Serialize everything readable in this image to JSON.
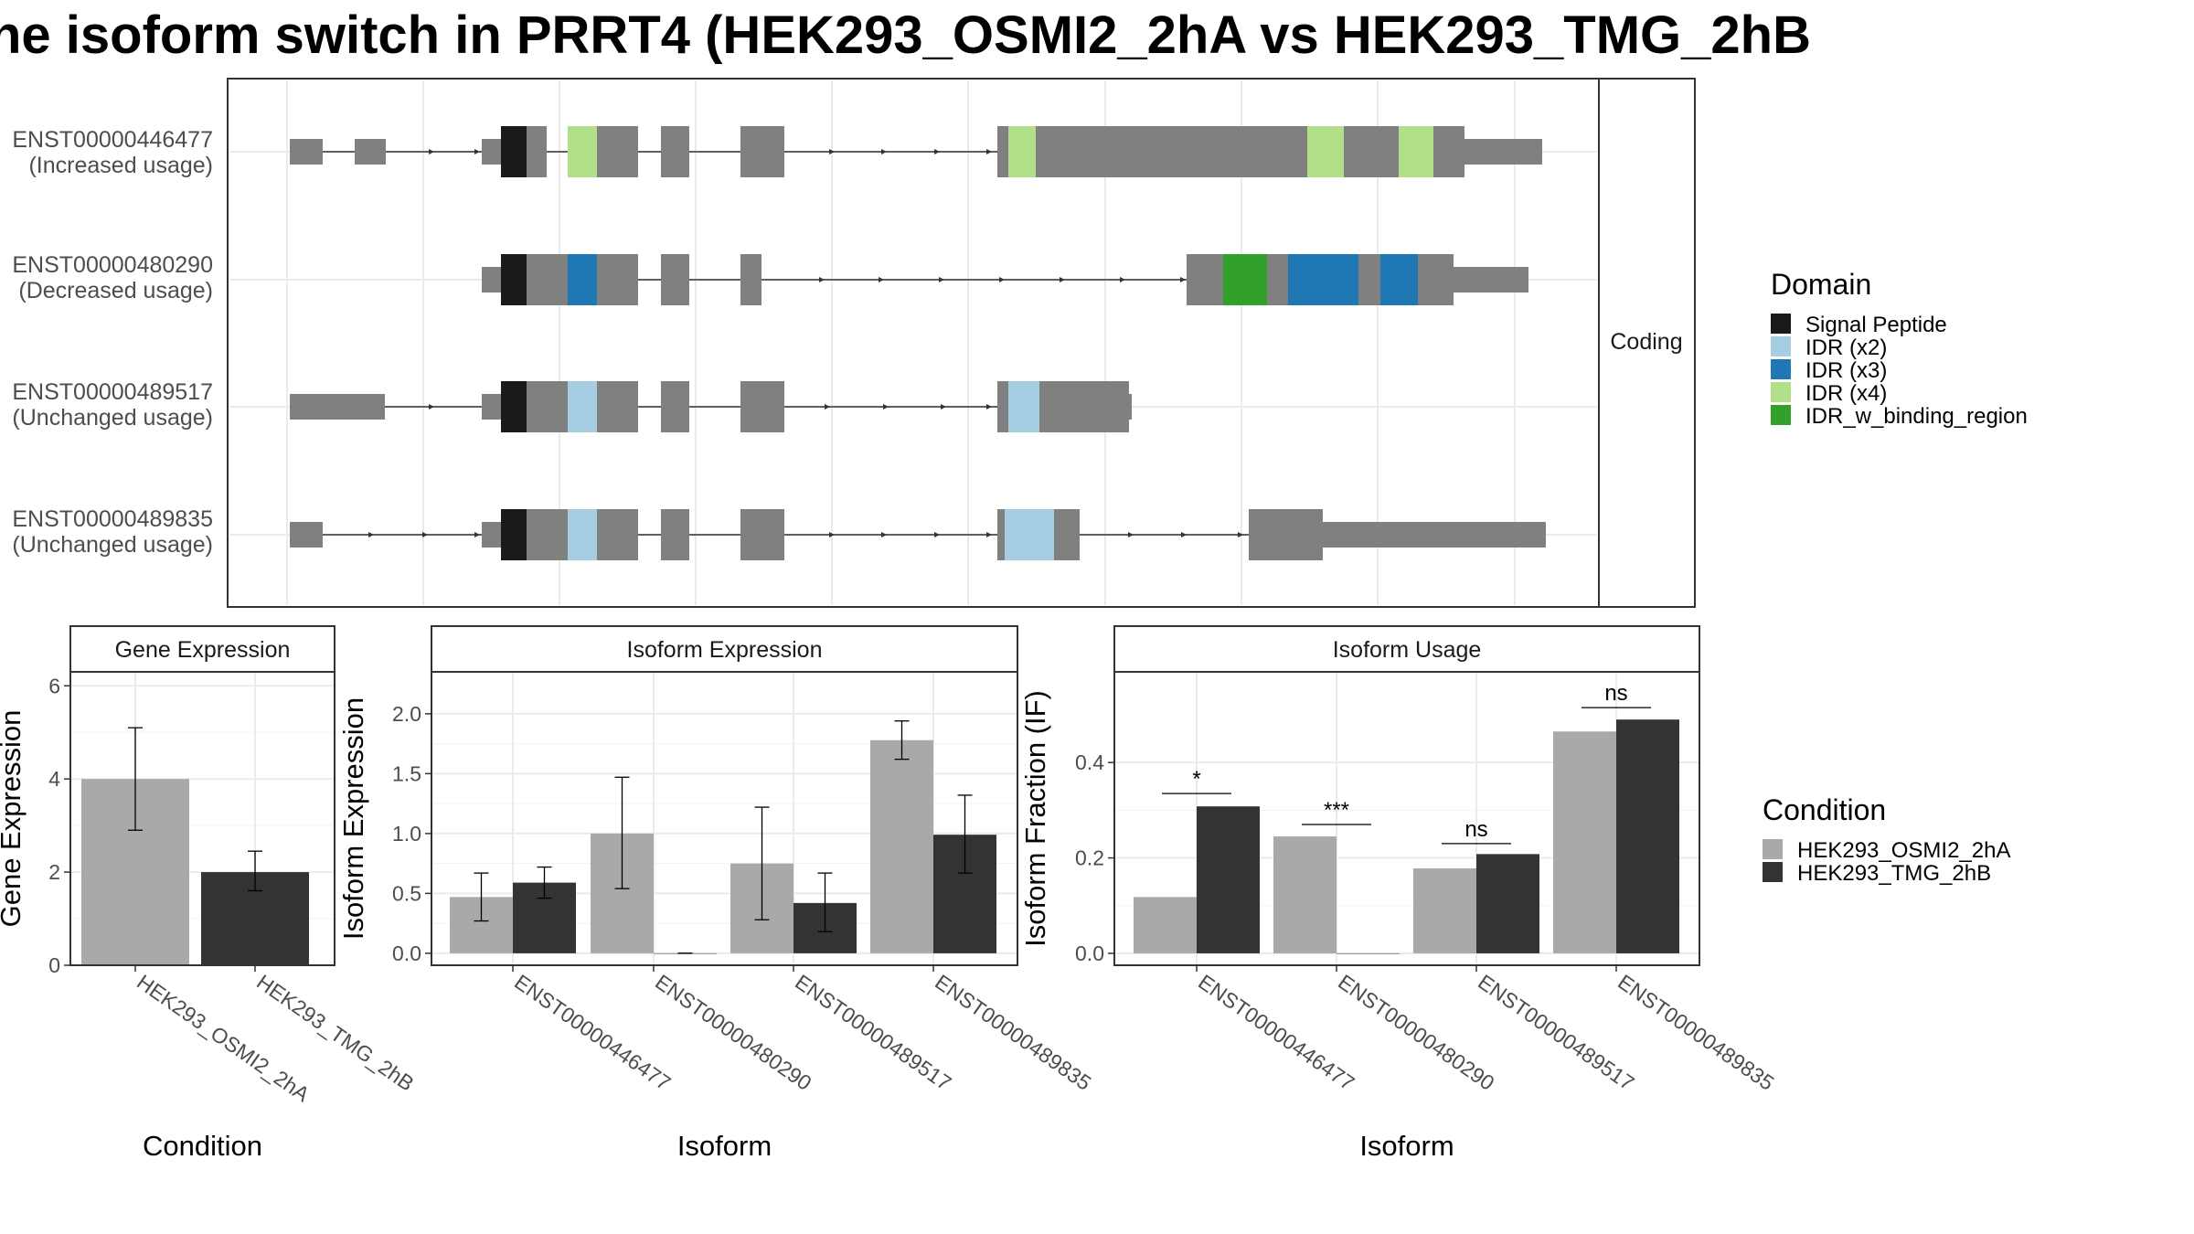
{
  "title": "he isoform switch in PRRT4 (HEK293_OSMI2_2hA vs HEK293_TMG_2hB",
  "colors": {
    "exon": "#808080",
    "intron": "#333333",
    "condition_1": "#a9a9a9",
    "condition_2": "#333333",
    "panel_border": "#333333",
    "grid": "#ebebeb"
  },
  "structure": {
    "facet_label": "Coding",
    "transcripts": [
      {
        "id": "ENST00000446477",
        "label": "ENST00000446477",
        "usage": "(Increased usage)"
      },
      {
        "id": "ENST00000480290",
        "label": "ENST00000480290",
        "usage": "(Decreased usage)"
      },
      {
        "id": "ENST00000489517",
        "label": "ENST00000489517",
        "usage": "(Unchanged usage)"
      },
      {
        "id": "ENST00000489835",
        "label": "ENST00000489835",
        "usage": "(Unchanged usage)"
      }
    ]
  },
  "domain_legend": {
    "title": "Domain",
    "items": [
      {
        "label": "Signal Peptide",
        "color": "#1a1a1a"
      },
      {
        "label": "IDR (x2)",
        "color": "#a6cee3"
      },
      {
        "label": "IDR (x3)",
        "color": "#1f78b4"
      },
      {
        "label": "IDR (x4)",
        "color": "#b2df8a"
      },
      {
        "label": "IDR_w_binding_region",
        "color": "#33a02c"
      }
    ]
  },
  "condition_legend": {
    "title": "Condition",
    "items": [
      {
        "label": "HEK293_OSMI2_2hA",
        "color": "#a9a9a9"
      },
      {
        "label": "HEK293_TMG_2hB",
        "color": "#333333"
      }
    ]
  },
  "chart_data": [
    {
      "type": "bar",
      "title": "Gene Expression",
      "xlabel": "Condition",
      "ylabel": "Gene Expression",
      "categories": [
        "HEK293_OSMI2_2hA",
        "HEK293_TMG_2hB"
      ],
      "values": [
        4.0,
        2.0
      ],
      "error_low": [
        2.9,
        1.6
      ],
      "error_high": [
        5.1,
        2.45
      ],
      "ylim": [
        0,
        6.3
      ],
      "yticks": [
        0,
        2,
        4,
        6
      ],
      "ytick_labels": [
        "0",
        "2",
        "4",
        "6"
      ]
    },
    {
      "type": "bar",
      "title": "Isoform Expression",
      "xlabel": "Isoform",
      "ylabel": "Isoform Expression",
      "categories": [
        "ENST00000446477",
        "ENST00000480290",
        "ENST00000489517",
        "ENST00000489835"
      ],
      "series": [
        {
          "name": "HEK293_OSMI2_2hA",
          "values": [
            0.47,
            1.0,
            0.75,
            1.78
          ],
          "error_low": [
            0.27,
            0.54,
            0.28,
            1.62
          ],
          "error_high": [
            0.67,
            1.47,
            1.22,
            1.94
          ]
        },
        {
          "name": "HEK293_TMG_2hB",
          "values": [
            0.59,
            0.0,
            0.42,
            0.99
          ],
          "error_low": [
            0.46,
            0.0,
            0.18,
            0.67
          ],
          "error_high": [
            0.72,
            0.0,
            0.67,
            1.32
          ]
        }
      ],
      "ylim": [
        -0.1,
        2.35
      ],
      "yticks": [
        0,
        0.5,
        1.0,
        1.5,
        2.0
      ],
      "ytick_labels": [
        "0.0",
        "0.5",
        "1.0",
        "1.5",
        "2.0"
      ]
    },
    {
      "type": "bar",
      "title": "Isoform Usage",
      "xlabel": "Isoform",
      "ylabel": "Isoform Fraction (IF)",
      "categories": [
        "ENST00000446477",
        "ENST00000480290",
        "ENST00000489517",
        "ENST00000489835"
      ],
      "series": [
        {
          "name": "HEK293_OSMI2_2hA",
          "values": [
            0.118,
            0.245,
            0.178,
            0.465
          ]
        },
        {
          "name": "HEK293_TMG_2hB",
          "values": [
            0.308,
            0.0,
            0.208,
            0.49
          ]
        }
      ],
      "significance": [
        "*",
        "***",
        "ns",
        "ns"
      ],
      "sig_y": [
        0.335,
        0.27,
        0.23,
        0.515
      ],
      "ylim": [
        -0.025,
        0.59
      ],
      "yticks": [
        0,
        0.2,
        0.4
      ],
      "ytick_labels": [
        "0.0",
        "0.2",
        "0.4"
      ]
    }
  ]
}
